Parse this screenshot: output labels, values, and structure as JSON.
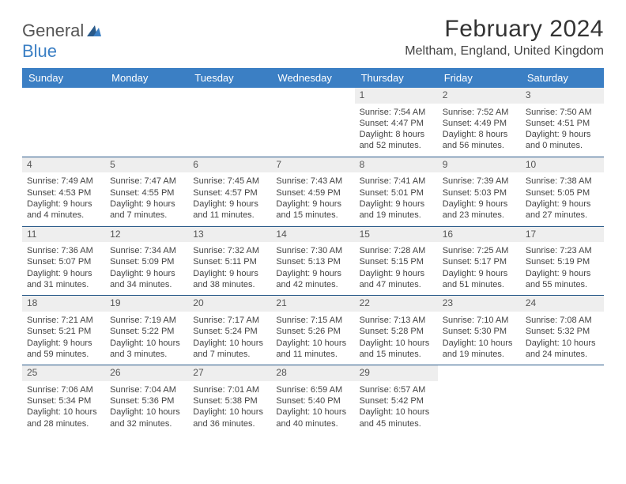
{
  "brand": {
    "general": "General",
    "blue": "Blue"
  },
  "title": "February 2024",
  "location": "Meltham, England, United Kingdom",
  "colors": {
    "header_bg": "#3b7fc4",
    "header_text": "#ffffff",
    "divider": "#2a5a8a",
    "daynum_bg": "#eeeeee",
    "body_text": "#444444",
    "logo_gray": "#555555",
    "logo_blue": "#3b7fc4",
    "page_bg": "#ffffff"
  },
  "fonts": {
    "title_size": 30,
    "location_size": 16,
    "th_size": 13,
    "cell_size": 11
  },
  "weekdays": [
    "Sunday",
    "Monday",
    "Tuesday",
    "Wednesday",
    "Thursday",
    "Friday",
    "Saturday"
  ],
  "weeks": [
    [
      null,
      null,
      null,
      null,
      {
        "n": "1",
        "sr": "Sunrise: 7:54 AM",
        "ss": "Sunset: 4:47 PM",
        "d1": "Daylight: 8 hours",
        "d2": "and 52 minutes."
      },
      {
        "n": "2",
        "sr": "Sunrise: 7:52 AM",
        "ss": "Sunset: 4:49 PM",
        "d1": "Daylight: 8 hours",
        "d2": "and 56 minutes."
      },
      {
        "n": "3",
        "sr": "Sunrise: 7:50 AM",
        "ss": "Sunset: 4:51 PM",
        "d1": "Daylight: 9 hours",
        "d2": "and 0 minutes."
      }
    ],
    [
      {
        "n": "4",
        "sr": "Sunrise: 7:49 AM",
        "ss": "Sunset: 4:53 PM",
        "d1": "Daylight: 9 hours",
        "d2": "and 4 minutes."
      },
      {
        "n": "5",
        "sr": "Sunrise: 7:47 AM",
        "ss": "Sunset: 4:55 PM",
        "d1": "Daylight: 9 hours",
        "d2": "and 7 minutes."
      },
      {
        "n": "6",
        "sr": "Sunrise: 7:45 AM",
        "ss": "Sunset: 4:57 PM",
        "d1": "Daylight: 9 hours",
        "d2": "and 11 minutes."
      },
      {
        "n": "7",
        "sr": "Sunrise: 7:43 AM",
        "ss": "Sunset: 4:59 PM",
        "d1": "Daylight: 9 hours",
        "d2": "and 15 minutes."
      },
      {
        "n": "8",
        "sr": "Sunrise: 7:41 AM",
        "ss": "Sunset: 5:01 PM",
        "d1": "Daylight: 9 hours",
        "d2": "and 19 minutes."
      },
      {
        "n": "9",
        "sr": "Sunrise: 7:39 AM",
        "ss": "Sunset: 5:03 PM",
        "d1": "Daylight: 9 hours",
        "d2": "and 23 minutes."
      },
      {
        "n": "10",
        "sr": "Sunrise: 7:38 AM",
        "ss": "Sunset: 5:05 PM",
        "d1": "Daylight: 9 hours",
        "d2": "and 27 minutes."
      }
    ],
    [
      {
        "n": "11",
        "sr": "Sunrise: 7:36 AM",
        "ss": "Sunset: 5:07 PM",
        "d1": "Daylight: 9 hours",
        "d2": "and 31 minutes."
      },
      {
        "n": "12",
        "sr": "Sunrise: 7:34 AM",
        "ss": "Sunset: 5:09 PM",
        "d1": "Daylight: 9 hours",
        "d2": "and 34 minutes."
      },
      {
        "n": "13",
        "sr": "Sunrise: 7:32 AM",
        "ss": "Sunset: 5:11 PM",
        "d1": "Daylight: 9 hours",
        "d2": "and 38 minutes."
      },
      {
        "n": "14",
        "sr": "Sunrise: 7:30 AM",
        "ss": "Sunset: 5:13 PM",
        "d1": "Daylight: 9 hours",
        "d2": "and 42 minutes."
      },
      {
        "n": "15",
        "sr": "Sunrise: 7:28 AM",
        "ss": "Sunset: 5:15 PM",
        "d1": "Daylight: 9 hours",
        "d2": "and 47 minutes."
      },
      {
        "n": "16",
        "sr": "Sunrise: 7:25 AM",
        "ss": "Sunset: 5:17 PM",
        "d1": "Daylight: 9 hours",
        "d2": "and 51 minutes."
      },
      {
        "n": "17",
        "sr": "Sunrise: 7:23 AM",
        "ss": "Sunset: 5:19 PM",
        "d1": "Daylight: 9 hours",
        "d2": "and 55 minutes."
      }
    ],
    [
      {
        "n": "18",
        "sr": "Sunrise: 7:21 AM",
        "ss": "Sunset: 5:21 PM",
        "d1": "Daylight: 9 hours",
        "d2": "and 59 minutes."
      },
      {
        "n": "19",
        "sr": "Sunrise: 7:19 AM",
        "ss": "Sunset: 5:22 PM",
        "d1": "Daylight: 10 hours",
        "d2": "and 3 minutes."
      },
      {
        "n": "20",
        "sr": "Sunrise: 7:17 AM",
        "ss": "Sunset: 5:24 PM",
        "d1": "Daylight: 10 hours",
        "d2": "and 7 minutes."
      },
      {
        "n": "21",
        "sr": "Sunrise: 7:15 AM",
        "ss": "Sunset: 5:26 PM",
        "d1": "Daylight: 10 hours",
        "d2": "and 11 minutes."
      },
      {
        "n": "22",
        "sr": "Sunrise: 7:13 AM",
        "ss": "Sunset: 5:28 PM",
        "d1": "Daylight: 10 hours",
        "d2": "and 15 minutes."
      },
      {
        "n": "23",
        "sr": "Sunrise: 7:10 AM",
        "ss": "Sunset: 5:30 PM",
        "d1": "Daylight: 10 hours",
        "d2": "and 19 minutes."
      },
      {
        "n": "24",
        "sr": "Sunrise: 7:08 AM",
        "ss": "Sunset: 5:32 PM",
        "d1": "Daylight: 10 hours",
        "d2": "and 24 minutes."
      }
    ],
    [
      {
        "n": "25",
        "sr": "Sunrise: 7:06 AM",
        "ss": "Sunset: 5:34 PM",
        "d1": "Daylight: 10 hours",
        "d2": "and 28 minutes."
      },
      {
        "n": "26",
        "sr": "Sunrise: 7:04 AM",
        "ss": "Sunset: 5:36 PM",
        "d1": "Daylight: 10 hours",
        "d2": "and 32 minutes."
      },
      {
        "n": "27",
        "sr": "Sunrise: 7:01 AM",
        "ss": "Sunset: 5:38 PM",
        "d1": "Daylight: 10 hours",
        "d2": "and 36 minutes."
      },
      {
        "n": "28",
        "sr": "Sunrise: 6:59 AM",
        "ss": "Sunset: 5:40 PM",
        "d1": "Daylight: 10 hours",
        "d2": "and 40 minutes."
      },
      {
        "n": "29",
        "sr": "Sunrise: 6:57 AM",
        "ss": "Sunset: 5:42 PM",
        "d1": "Daylight: 10 hours",
        "d2": "and 45 minutes."
      },
      null,
      null
    ]
  ]
}
